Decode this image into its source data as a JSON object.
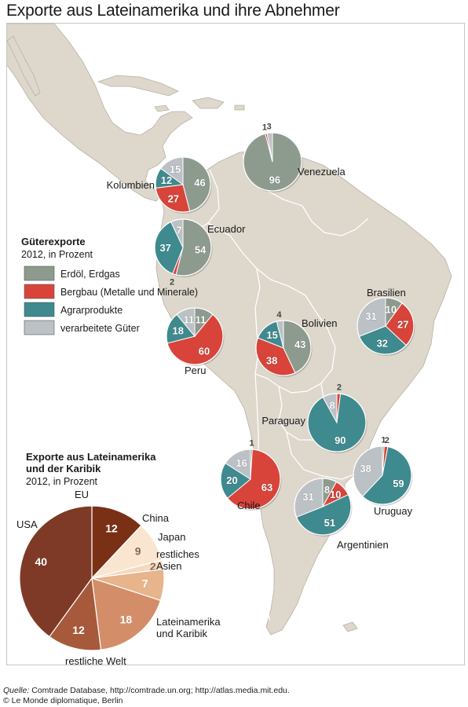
{
  "title": "Exporte aus Lateinamerika und ihre Abnehmer",
  "colors": {
    "oil": "#8d9b8f",
    "mining": "#d8443a",
    "agri": "#3e8a8f",
    "processed": "#bcc1c5",
    "land": "#ddd7cc",
    "land_stroke": "#ffffff",
    "sea": "#ffffff"
  },
  "legend_goods": {
    "heading": "Güterexporte",
    "subheading": "2012, in Prozent",
    "items": [
      {
        "key": "oil",
        "label": "Erdöl, Erdgas"
      },
      {
        "key": "mining",
        "label": "Bergbau (Metalle und Minerale)"
      },
      {
        "key": "agri",
        "label": "Agrarprodukte"
      },
      {
        "key": "processed",
        "label": "verarbeitete Güter"
      }
    ]
  },
  "countries": [
    {
      "name": "Venezuela",
      "slices": {
        "oil": 96,
        "mining": 1,
        "agri": 0,
        "processed": 3
      }
    },
    {
      "name": "Kolumbien",
      "slices": {
        "oil": 46,
        "mining": 27,
        "agri": 12,
        "processed": 15
      }
    },
    {
      "name": "Ecuador",
      "slices": {
        "oil": 54,
        "mining": 2,
        "agri": 37,
        "processed": 7
      }
    },
    {
      "name": "Peru",
      "slices": {
        "oil": 11,
        "mining": 60,
        "agri": 18,
        "processed": 11
      }
    },
    {
      "name": "Bolivien",
      "slices": {
        "oil": 43,
        "mining": 38,
        "agri": 15,
        "processed": 4
      }
    },
    {
      "name": "Brasilien",
      "slices": {
        "oil": 10,
        "mining": 27,
        "agri": 32,
        "processed": 31
      }
    },
    {
      "name": "Paraguay",
      "slices": {
        "oil": 0,
        "mining": 2,
        "agri": 90,
        "processed": 8
      }
    },
    {
      "name": "Chile",
      "slices": {
        "oil": 1,
        "mining": 63,
        "agri": 20,
        "processed": 16
      }
    },
    {
      "name": "Uruguay",
      "slices": {
        "oil": 1,
        "mining": 2,
        "agri": 59,
        "processed": 38
      }
    },
    {
      "name": "Argentinien",
      "slices": {
        "oil": 8,
        "mining": 10,
        "agri": 51,
        "processed": 31
      }
    }
  ],
  "chart_data": {
    "type": "pie",
    "title": "Exporte aus Lateinamerika und der Karibik",
    "subtitle": "2012, in Prozent",
    "slices": [
      {
        "label": "EU",
        "value": 12,
        "color": "#7a3015"
      },
      {
        "label": "China",
        "value": 9,
        "color": "#fae5d0"
      },
      {
        "label": "Japan",
        "value": 2,
        "color": "#f6d9bd"
      },
      {
        "label": "restliches Asien",
        "value": 7,
        "color": "#e7b48c"
      },
      {
        "label": "Lateinamerika und Karibik",
        "value": 18,
        "color": "#d38d69"
      },
      {
        "label": "restliche Welt",
        "value": 12,
        "color": "#a65a3b"
      },
      {
        "label": "USA",
        "value": 40,
        "color": "#7e3a26"
      }
    ],
    "label_lines": {
      "restliches Asien": [
        "restliches",
        "Asien"
      ],
      "Lateinamerika und Karibik": [
        "Lateinamerika",
        "und Karibik"
      ]
    }
  },
  "footer": {
    "source_label": "Quelle:",
    "source_text": "Comtrade Database, http://comtrade.un.org; http://atlas.media.mit.edu.",
    "copyright": "© Le Monde diplomatique, Berlin"
  }
}
